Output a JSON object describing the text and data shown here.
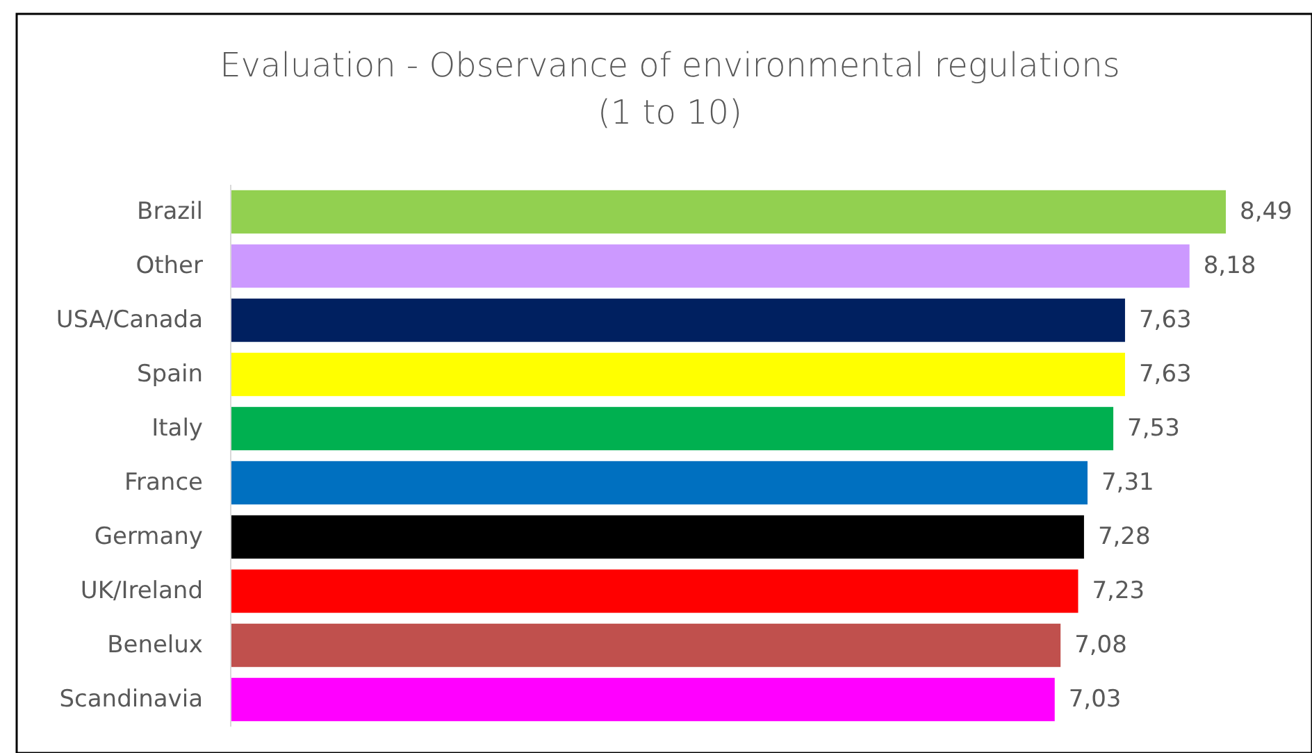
{
  "chart_data": {
    "type": "bar",
    "orientation": "horizontal",
    "title": "Evaluation - Observance of environmental regulations",
    "subtitle": "(1 to 10)",
    "categories": [
      "Brazil",
      "Other",
      "USA/Canada",
      "Spain",
      "Italy",
      "France",
      "Germany",
      "UK/Ireland",
      "Benelux",
      "Scandinavia"
    ],
    "values": [
      8.49,
      8.18,
      7.63,
      7.63,
      7.53,
      7.31,
      7.28,
      7.23,
      7.08,
      7.03
    ],
    "value_labels": [
      "8,49",
      "8,18",
      "7,63",
      "7,63",
      "7,53",
      "7,31",
      "7,28",
      "7,23",
      "7,08",
      "7,03"
    ],
    "colors": [
      "#92d050",
      "#cc99ff",
      "#002060",
      "#ffff00",
      "#00b050",
      "#0070c0",
      "#000000",
      "#ff0000",
      "#c0504d",
      "#ff00ff"
    ]
  }
}
